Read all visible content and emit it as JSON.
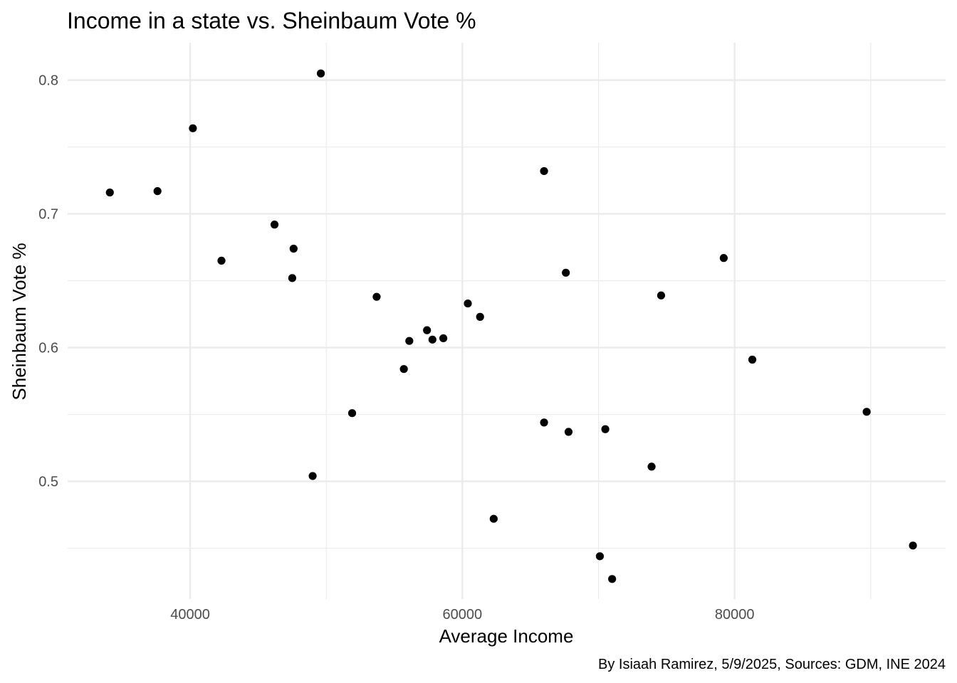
{
  "chart_data": {
    "type": "scatter",
    "title": "Income in a state vs. Sheinbaum Vote %",
    "xlabel": "Average Income",
    "ylabel": "Sheinbaum Vote %",
    "caption": "By Isiaah Ramirez, 5/9/2025, Sources: GDM, INE 2024",
    "xlim": [
      31000,
      95500
    ],
    "ylim": [
      0.412,
      0.828
    ],
    "x_ticks": [
      40000,
      60000,
      80000
    ],
    "x_tick_labels": [
      "40000",
      "60000",
      "80000"
    ],
    "x_minor_ticks": [
      50000,
      70000,
      90000
    ],
    "y_ticks": [
      0.5,
      0.6,
      0.7,
      0.8
    ],
    "y_tick_labels": [
      "0.5",
      "0.6",
      "0.7",
      "0.8"
    ],
    "y_minor_ticks": [
      0.45,
      0.55,
      0.65,
      0.75
    ],
    "grid": true,
    "legend": "none",
    "point_color": "#000000",
    "points": [
      {
        "x": 34100,
        "y": 0.716
      },
      {
        "x": 37600,
        "y": 0.717
      },
      {
        "x": 40200,
        "y": 0.764
      },
      {
        "x": 42300,
        "y": 0.665
      },
      {
        "x": 46200,
        "y": 0.692
      },
      {
        "x": 47500,
        "y": 0.652
      },
      {
        "x": 47600,
        "y": 0.674
      },
      {
        "x": 49000,
        "y": 0.504
      },
      {
        "x": 49600,
        "y": 0.805
      },
      {
        "x": 51900,
        "y": 0.551
      },
      {
        "x": 53700,
        "y": 0.638
      },
      {
        "x": 55700,
        "y": 0.584
      },
      {
        "x": 56100,
        "y": 0.605
      },
      {
        "x": 57400,
        "y": 0.613
      },
      {
        "x": 57800,
        "y": 0.606
      },
      {
        "x": 58600,
        "y": 0.607
      },
      {
        "x": 60400,
        "y": 0.633
      },
      {
        "x": 61300,
        "y": 0.623
      },
      {
        "x": 62300,
        "y": 0.472
      },
      {
        "x": 66000,
        "y": 0.544
      },
      {
        "x": 66000,
        "y": 0.732
      },
      {
        "x": 67600,
        "y": 0.656
      },
      {
        "x": 67800,
        "y": 0.537
      },
      {
        "x": 70100,
        "y": 0.444
      },
      {
        "x": 70500,
        "y": 0.539
      },
      {
        "x": 71000,
        "y": 0.427
      },
      {
        "x": 73900,
        "y": 0.511
      },
      {
        "x": 74600,
        "y": 0.639
      },
      {
        "x": 79200,
        "y": 0.667
      },
      {
        "x": 81300,
        "y": 0.591
      },
      {
        "x": 89700,
        "y": 0.552
      },
      {
        "x": 93100,
        "y": 0.452
      }
    ]
  }
}
